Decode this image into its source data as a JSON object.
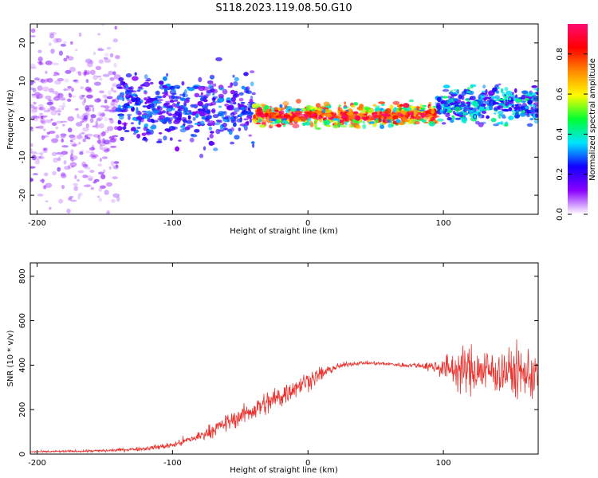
{
  "title": "S118.2023.119.08.50.G10",
  "chart_data": [
    {
      "type": "heatmap",
      "xlabel": "Height of straight line (km)",
      "ylabel": "Frequency (Hz)",
      "xlim": [
        -205,
        170
      ],
      "ylim": [
        -25,
        25
      ],
      "x_ticks": [
        -200,
        -100,
        0,
        100
      ],
      "y_ticks": [
        -20,
        -10,
        0,
        10,
        20
      ],
      "colorbar": {
        "label": "Normalized spectral amplitude",
        "range": [
          0.0,
          0.95
        ],
        "ticks": [
          0.0,
          0.2,
          0.4,
          0.6,
          0.8
        ],
        "colors": [
          "#ffffff",
          "#8a00ff",
          "#1200ff",
          "#00e5ff",
          "#00ff32",
          "#fffb00",
          "#ff8a00",
          "#ff0000",
          "#ff0a72"
        ]
      },
      "regions": [
        {
          "x_range": [
            -205,
            -140
          ],
          "freq_center": 0,
          "freq_spread": 25,
          "amplitude": 0.12
        },
        {
          "x_range": [
            -140,
            -40
          ],
          "freq_center": 3,
          "freq_spread": 9,
          "amplitude": 0.25
        },
        {
          "x_range": [
            -40,
            95
          ],
          "freq_center": 1,
          "freq_spread": 3,
          "amplitude": 0.7
        },
        {
          "x_range": [
            95,
            170
          ],
          "freq_center": 4,
          "freq_spread": 5,
          "amplitude": 0.35
        }
      ]
    },
    {
      "type": "line",
      "xlabel": "Height of straight line (km)",
      "ylabel": "SNR (10 * v/v)",
      "xlim": [
        -205,
        170
      ],
      "ylim": [
        0,
        860
      ],
      "x_ticks": [
        -200,
        -100,
        0,
        100
      ],
      "y_ticks": [
        0,
        200,
        400,
        600,
        800
      ],
      "color": "#e8332e",
      "series": [
        {
          "x": [
            -205,
            -180,
            -150,
            -120,
            -100,
            -80,
            -60,
            -40,
            -20,
            -10,
            0,
            10,
            20,
            30,
            40,
            50,
            60,
            70,
            80,
            90,
            100,
            110,
            120,
            130,
            140,
            150,
            160,
            170
          ],
          "mean": [
            10,
            12,
            15,
            25,
            40,
            80,
            140,
            200,
            260,
            300,
            330,
            360,
            390,
            405,
            410,
            408,
            405,
            400,
            400,
            395,
            390,
            380,
            380,
            375,
            370,
            370,
            360,
            360
          ],
          "spread": [
            5,
            6,
            8,
            12,
            18,
            30,
            45,
            60,
            70,
            60,
            50,
            40,
            20,
            12,
            10,
            10,
            10,
            12,
            15,
            25,
            60,
            110,
            130,
            130,
            120,
            130,
            140,
            140
          ]
        }
      ]
    }
  ]
}
